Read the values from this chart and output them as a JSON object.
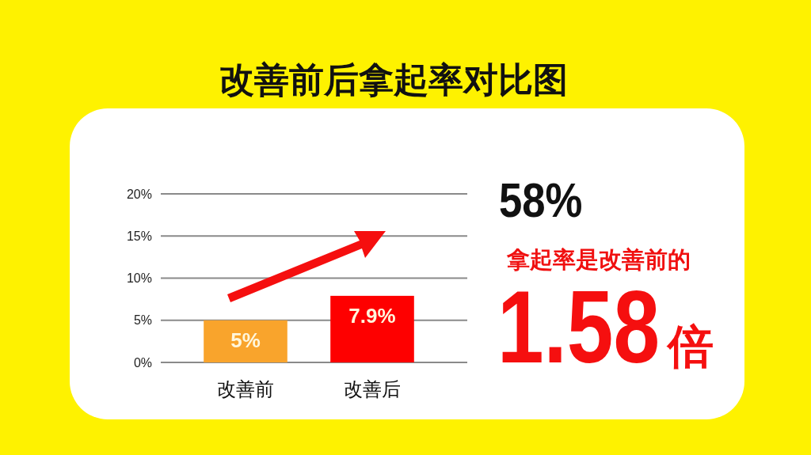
{
  "chart_data": {
    "type": "bar",
    "title": "改善前后拿起率对比图",
    "categories": [
      "改善前",
      "改善后"
    ],
    "values": [
      5,
      7.9
    ],
    "colors": [
      "#f9a42c",
      "#fe0000"
    ],
    "value_labels": [
      "5%",
      "7.9%"
    ],
    "ylim": [
      0,
      20
    ],
    "yticks": [
      {
        "value": 0,
        "label": "0%"
      },
      {
        "value": 5,
        "label": "5%"
      },
      {
        "value": 10,
        "label": "10%"
      },
      {
        "value": 15,
        "label": "15%"
      },
      {
        "value": 20,
        "label": "20%"
      }
    ],
    "grid": "y",
    "annotations": [
      "58%",
      "拿起率是改善前的",
      "1.58倍"
    ]
  }
}
